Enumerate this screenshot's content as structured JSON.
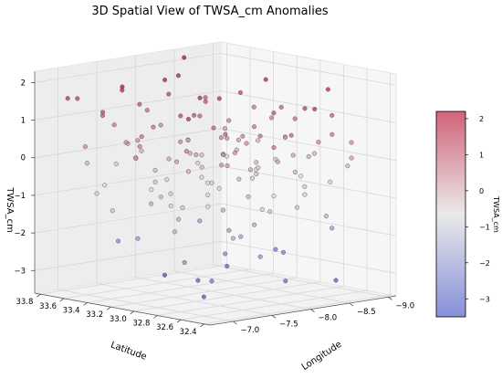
{
  "chart_data": {
    "type": "scatter",
    "title": "3D Spatial View of TWSA_cm Anomalies",
    "xlabel": "Longitude",
    "ylabel": "Latitude",
    "zlabel": "TWSA_cm",
    "colorbar_label": "TWSA_cm",
    "colormap": "coolwarm",
    "colormap_low": "#3b4cc0",
    "colormap_mid": "#dddddd",
    "colormap_high": "#b40426",
    "xlim": [
      -6.7,
      -9.1
    ],
    "ylim": [
      32.35,
      33.85
    ],
    "zlim": [
      -3.6,
      2.3
    ],
    "clim": [
      -3.5,
      2.2
    ],
    "x_ticks": [
      {
        "value": -9.0,
        "label": "−9.0"
      },
      {
        "value": -8.5,
        "label": "−8.5"
      },
      {
        "value": -8.0,
        "label": "−8.0"
      },
      {
        "value": -7.5,
        "label": "−7.5"
      },
      {
        "value": -7.0,
        "label": "−7.0"
      }
    ],
    "y_ticks": [
      {
        "value": 32.4,
        "label": "32.4"
      },
      {
        "value": 32.6,
        "label": "32.6"
      },
      {
        "value": 32.8,
        "label": "32.8"
      },
      {
        "value": 33.0,
        "label": "33.0"
      },
      {
        "value": 33.2,
        "label": "33.2"
      },
      {
        "value": 33.4,
        "label": "33.4"
      },
      {
        "value": 33.6,
        "label": "33.6"
      },
      {
        "value": 33.8,
        "label": "33.8"
      }
    ],
    "z_ticks": [
      {
        "value": 2,
        "label": "2"
      },
      {
        "value": 1,
        "label": "1"
      },
      {
        "value": 0,
        "label": "0"
      },
      {
        "value": -1,
        "label": "−1"
      },
      {
        "value": -2,
        "label": "−2"
      },
      {
        "value": -3,
        "label": "−3"
      }
    ],
    "colorbar_ticks": [
      {
        "value": 2,
        "label": "2"
      },
      {
        "value": 1,
        "label": "1"
      },
      {
        "value": 0,
        "label": "0"
      },
      {
        "value": -1,
        "label": "−1"
      },
      {
        "value": -2,
        "label": "−2"
      },
      {
        "value": -3,
        "label": "−3"
      }
    ],
    "points": [
      {
        "x": -7.6,
        "y": 33.55,
        "z": 1.3
      },
      {
        "x": -7.2,
        "y": 33.6,
        "z": 1.1
      },
      {
        "x": -7.9,
        "y": 33.5,
        "z": 1.5
      },
      {
        "x": -8.3,
        "y": 33.45,
        "z": 1.2
      },
      {
        "x": -7.4,
        "y": 33.3,
        "z": 0.9
      },
      {
        "x": -8.0,
        "y": 33.3,
        "z": 1.0
      },
      {
        "x": -8.6,
        "y": 33.35,
        "z": 1.4
      },
      {
        "x": -7.1,
        "y": 33.2,
        "z": 0.8
      },
      {
        "x": -7.7,
        "y": 33.15,
        "z": 1.2
      },
      {
        "x": -8.4,
        "y": 33.1,
        "z": 0.7
      },
      {
        "x": -8.9,
        "y": 33.2,
        "z": 1.0
      },
      {
        "x": -7.3,
        "y": 33.0,
        "z": 1.4
      },
      {
        "x": -8.1,
        "y": 33.0,
        "z": 0.6
      },
      {
        "x": -8.7,
        "y": 32.95,
        "z": 0.9
      },
      {
        "x": -7.5,
        "y": 32.85,
        "z": 1.1
      },
      {
        "x": -8.2,
        "y": 32.8,
        "z": 1.3
      },
      {
        "x": -7.0,
        "y": 32.75,
        "z": 0.7
      },
      {
        "x": -8.8,
        "y": 32.7,
        "z": 1.1
      },
      {
        "x": -7.8,
        "y": 32.65,
        "z": 0.9
      },
      {
        "x": -7.2,
        "y": 32.55,
        "z": 1.2
      },
      {
        "x": -8.5,
        "y": 32.5,
        "z": 0.8
      },
      {
        "x": -7.9,
        "y": 32.45,
        "z": 1.0
      },
      {
        "x": -6.9,
        "y": 33.7,
        "z": 1.6
      },
      {
        "x": -8.0,
        "y": 33.75,
        "z": 0.9
      },
      {
        "x": -8.6,
        "y": 33.65,
        "z": 1.1
      },
      {
        "x": -6.9,
        "y": 33.4,
        "z": 1.4
      },
      {
        "x": -9.0,
        "y": 33.5,
        "z": 0.8
      },
      {
        "x": -7.5,
        "y": 33.7,
        "z": 0.7
      },
      {
        "x": -8.3,
        "y": 32.6,
        "z": 1.5
      },
      {
        "x": -7.6,
        "y": 32.4,
        "z": 0.8
      },
      {
        "x": -7.7,
        "y": 33.4,
        "z": 2.0
      },
      {
        "x": -8.1,
        "y": 33.55,
        "z": 1.9
      },
      {
        "x": -7.3,
        "y": 33.5,
        "z": 1.8
      },
      {
        "x": -8.7,
        "y": 33.2,
        "z": 1.8
      },
      {
        "x": -7.4,
        "y": 32.9,
        "z": 1.9
      },
      {
        "x": -7.0,
        "y": 33.3,
        "z": 2.1
      },
      {
        "x": -8.9,
        "y": 32.8,
        "z": 1.7
      },
      {
        "x": -8.4,
        "y": 33.7,
        "z": 2.2
      },
      {
        "x": -6.8,
        "y": 32.6,
        "z": 1.7
      },
      {
        "x": -7.8,
        "y": 33.0,
        "z": 1.7
      },
      {
        "x": -7.1,
        "y": 33.75,
        "z": 1.5
      },
      {
        "x": -8.2,
        "y": 32.45,
        "z": 1.6
      },
      {
        "x": -7.5,
        "y": 33.5,
        "z": 0.4
      },
      {
        "x": -8.0,
        "y": 33.4,
        "z": 0.3
      },
      {
        "x": -7.2,
        "y": 33.4,
        "z": 0.5
      },
      {
        "x": -8.5,
        "y": 33.3,
        "z": 0.2
      },
      {
        "x": -7.6,
        "y": 33.2,
        "z": 0.5
      },
      {
        "x": -8.2,
        "y": 33.2,
        "z": 0.4
      },
      {
        "x": -8.8,
        "y": 33.1,
        "z": 0.3
      },
      {
        "x": -7.3,
        "y": 33.1,
        "z": 0.2
      },
      {
        "x": -7.9,
        "y": 33.05,
        "z": 0.6
      },
      {
        "x": -8.5,
        "y": 32.9,
        "z": 0.5
      },
      {
        "x": -7.1,
        "y": 32.9,
        "z": 0.3
      },
      {
        "x": -7.7,
        "y": 32.8,
        "z": 0.4
      },
      {
        "x": -8.3,
        "y": 32.7,
        "z": 0.2
      },
      {
        "x": -7.4,
        "y": 32.7,
        "z": 0.5
      },
      {
        "x": -8.9,
        "y": 32.6,
        "z": 0.4
      },
      {
        "x": -7.8,
        "y": 32.5,
        "z": 0.3
      },
      {
        "x": -7.0,
        "y": 32.45,
        "z": 0.5
      },
      {
        "x": -8.6,
        "y": 32.4,
        "z": 0.2
      },
      {
        "x": -6.9,
        "y": 33.55,
        "z": 0.4
      },
      {
        "x": -8.1,
        "y": 33.7,
        "z": 0.5
      },
      {
        "x": -8.7,
        "y": 33.55,
        "z": 0.3
      },
      {
        "x": -7.6,
        "y": 33.65,
        "z": 0.2
      },
      {
        "x": -9.0,
        "y": 33.35,
        "z": 0.6
      },
      {
        "x": -6.8,
        "y": 33.05,
        "z": 0.4
      },
      {
        "x": -8.4,
        "y": 32.55,
        "z": 0.6
      },
      {
        "x": -7.3,
        "y": 32.6,
        "z": 0.3
      },
      {
        "x": -8.0,
        "y": 32.9,
        "z": 0.5
      },
      {
        "x": -7.5,
        "y": 33.0,
        "z": 0.3
      },
      {
        "x": -8.6,
        "y": 33.45,
        "z": 0.6
      },
      {
        "x": -7.0,
        "y": 33.15,
        "z": 0.6
      },
      {
        "x": -7.4,
        "y": 33.45,
        "z": 0.0
      },
      {
        "x": -8.1,
        "y": 33.35,
        "z": -0.1
      },
      {
        "x": -7.8,
        "y": 33.25,
        "z": 0.1
      },
      {
        "x": -8.4,
        "y": 33.25,
        "z": 0.0
      },
      {
        "x": -7.2,
        "y": 33.15,
        "z": -0.1
      },
      {
        "x": -8.0,
        "y": 33.1,
        "z": 0.1
      },
      {
        "x": -8.6,
        "y": 33.05,
        "z": -0.2
      },
      {
        "x": -7.5,
        "y": 32.95,
        "z": 0.0
      },
      {
        "x": -8.2,
        "y": 32.95,
        "z": -0.1
      },
      {
        "x": -7.1,
        "y": 32.8,
        "z": 0.1
      },
      {
        "x": -8.8,
        "y": 32.85,
        "z": 0.0
      },
      {
        "x": -7.9,
        "y": 32.75,
        "z": -0.2
      },
      {
        "x": -8.5,
        "y": 32.7,
        "z": 0.1
      },
      {
        "x": -7.3,
        "y": 32.5,
        "z": 0.0
      },
      {
        "x": -8.1,
        "y": 32.55,
        "z": -0.1
      },
      {
        "x": -7.7,
        "y": 33.6,
        "z": 0.0
      },
      {
        "x": -8.3,
        "y": 33.6,
        "z": 0.1
      },
      {
        "x": -7.0,
        "y": 33.6,
        "z": -0.1
      },
      {
        "x": -8.9,
        "y": 33.4,
        "z": 0.0
      },
      {
        "x": -6.9,
        "y": 32.95,
        "z": -0.2
      },
      {
        "x": -7.6,
        "y": 32.6,
        "z": 0.1
      },
      {
        "x": -8.7,
        "y": 32.5,
        "z": -0.1
      },
      {
        "x": -7.5,
        "y": 33.25,
        "z": -0.5
      },
      {
        "x": -8.2,
        "y": 33.45,
        "z": -0.4
      },
      {
        "x": -7.8,
        "y": 33.1,
        "z": -0.6
      },
      {
        "x": -8.5,
        "y": 33.15,
        "z": -0.5
      },
      {
        "x": -7.3,
        "y": 33.25,
        "z": -0.7
      },
      {
        "x": -8.0,
        "y": 32.85,
        "z": -0.4
      },
      {
        "x": -8.7,
        "y": 32.9,
        "z": -0.6
      },
      {
        "x": -7.2,
        "y": 32.7,
        "z": -0.5
      },
      {
        "x": -7.9,
        "y": 32.6,
        "z": -0.7
      },
      {
        "x": -8.4,
        "y": 32.45,
        "z": -0.4
      },
      {
        "x": -7.0,
        "y": 33.45,
        "z": -0.6
      },
      {
        "x": -8.8,
        "y": 33.6,
        "z": -0.5
      },
      {
        "x": -7.6,
        "y": 33.75,
        "z": -0.4
      },
      {
        "x": -6.9,
        "y": 32.5,
        "z": -0.6
      },
      {
        "x": -8.3,
        "y": 33.0,
        "z": -0.3
      },
      {
        "x": -7.4,
        "y": 32.8,
        "z": -0.3
      },
      {
        "x": -7.7,
        "y": 33.35,
        "z": -1.0
      },
      {
        "x": -8.1,
        "y": 33.2,
        "z": -0.9
      },
      {
        "x": -7.4,
        "y": 33.05,
        "z": -1.1
      },
      {
        "x": -8.6,
        "y": 32.8,
        "z": -1.0
      },
      {
        "x": -7.1,
        "y": 32.95,
        "z": -0.9
      },
      {
        "x": -8.0,
        "y": 32.7,
        "z": -1.2
      },
      {
        "x": -8.9,
        "y": 33.0,
        "z": -1.0
      },
      {
        "x": -7.6,
        "y": 32.5,
        "z": -0.9
      },
      {
        "x": -6.8,
        "y": 33.25,
        "z": -1.1
      },
      {
        "x": -8.4,
        "y": 33.55,
        "z": -0.9
      },
      {
        "x": -7.2,
        "y": 33.65,
        "z": -1.0
      },
      {
        "x": -8.2,
        "y": 32.6,
        "z": -1.1
      },
      {
        "x": -7.8,
        "y": 33.5,
        "z": -1.2
      },
      {
        "x": -7.5,
        "y": 33.15,
        "z": -1.5
      },
      {
        "x": -8.3,
        "y": 33.3,
        "z": -1.6
      },
      {
        "x": -7.0,
        "y": 32.85,
        "z": -1.5
      },
      {
        "x": -8.1,
        "y": 32.9,
        "z": -1.7
      },
      {
        "x": -8.7,
        "y": 33.35,
        "z": -1.4
      },
      {
        "x": -7.3,
        "y": 32.55,
        "z": -1.6
      },
      {
        "x": -7.9,
        "y": 33.65,
        "z": -1.5
      },
      {
        "x": -8.5,
        "y": 32.55,
        "z": -1.4
      },
      {
        "x": -7.7,
        "y": 32.75,
        "z": -1.8
      },
      {
        "x": -8.0,
        "y": 33.05,
        "z": -1.9
      },
      {
        "x": -7.2,
        "y": 33.3,
        "z": -2.0
      },
      {
        "x": -8.8,
        "y": 32.7,
        "z": -1.9
      },
      {
        "x": -7.5,
        "y": 32.45,
        "z": -2.1
      },
      {
        "x": -8.3,
        "y": 33.5,
        "z": -2.0
      },
      {
        "x": -6.9,
        "y": 32.7,
        "z": -2.2
      },
      {
        "x": -7.8,
        "y": 32.95,
        "z": -2.4
      },
      {
        "x": -8.4,
        "y": 32.85,
        "z": -2.5
      },
      {
        "x": -7.4,
        "y": 33.6,
        "z": -2.3
      },
      {
        "x": -8.6,
        "y": 33.05,
        "z": -2.6
      },
      {
        "x": -7.1,
        "y": 32.6,
        "z": -2.7
      },
      {
        "x": -7.9,
        "y": 32.5,
        "z": -2.9
      },
      {
        "x": -8.2,
        "y": 33.2,
        "z": -3.0
      },
      {
        "x": -7.6,
        "y": 33.05,
        "z": -3.1
      },
      {
        "x": -8.7,
        "y": 32.6,
        "z": -3.2
      },
      {
        "x": -7.3,
        "y": 32.8,
        "z": -3.3
      },
      {
        "x": -8.0,
        "y": 33.6,
        "z": -3.4
      }
    ]
  }
}
